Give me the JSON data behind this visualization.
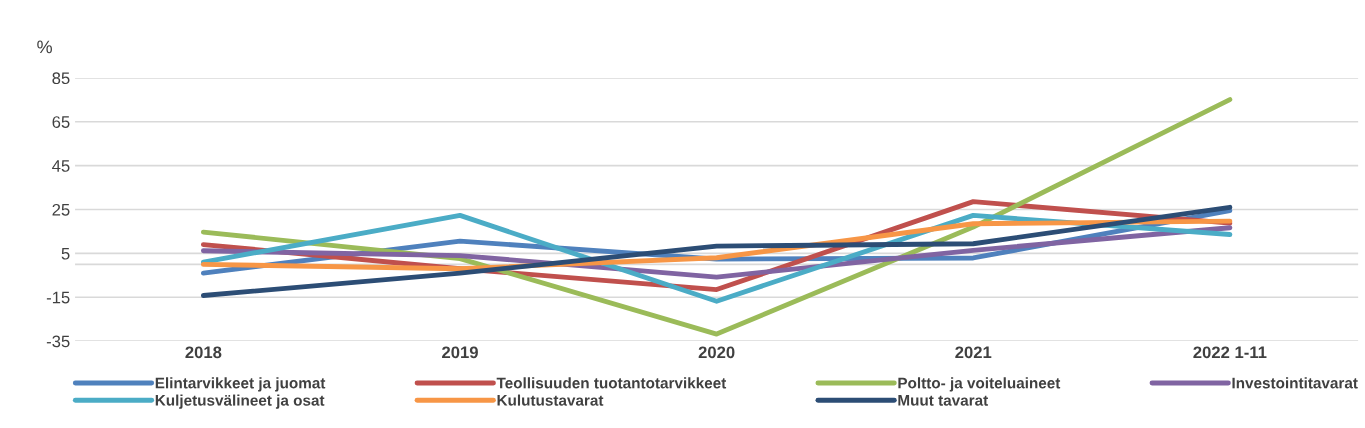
{
  "chart_data": {
    "type": "line",
    "ylabel": "%",
    "categories": [
      "2018",
      "2019",
      "2020",
      "2021",
      "2022 1-11"
    ],
    "ylim": [
      -35,
      85
    ],
    "yticks": [
      -35,
      -15,
      {
        "value": 0,
        "label": null
      },
      5,
      25,
      45,
      65,
      85
    ],
    "grid": "y",
    "legend": "bottom",
    "marker": "none",
    "line_style": "solid",
    "series": [
      {
        "name": "Elintarvikkeet ja juomat",
        "color": "#4f81bd",
        "values": [
          -4,
          10.6,
          2.4,
          2.9,
          24.5
        ]
      },
      {
        "name": "Teollisuuden tuotantotarvikkeet",
        "color": "#c0504d",
        "values": [
          9,
          -2,
          -11.5,
          28.6,
          18.8
        ]
      },
      {
        "name": "Poltto- ja voiteluaineet",
        "color": "#9bbb59",
        "values": [
          14.7,
          2.6,
          -31.8,
          17,
          75.1
        ]
      },
      {
        "name": "Investointitavarat",
        "color": "#8064a2",
        "values": [
          6.2,
          4,
          -5.8,
          6.4,
          16.7
        ]
      },
      {
        "name": "Kuljetusvälineet ja osat",
        "color": "#4bacc6",
        "values": [
          1,
          22.3,
          -16.8,
          22.3,
          13.6
        ]
      },
      {
        "name": "Kulutustavarat",
        "color": "#f79646",
        "values": [
          0,
          -2,
          3,
          18.5,
          19.7
        ]
      },
      {
        "name": "Muut tavarat",
        "color": "#2c4d75",
        "values": [
          -14.2,
          -4,
          8.3,
          9.4,
          26
        ]
      }
    ]
  }
}
